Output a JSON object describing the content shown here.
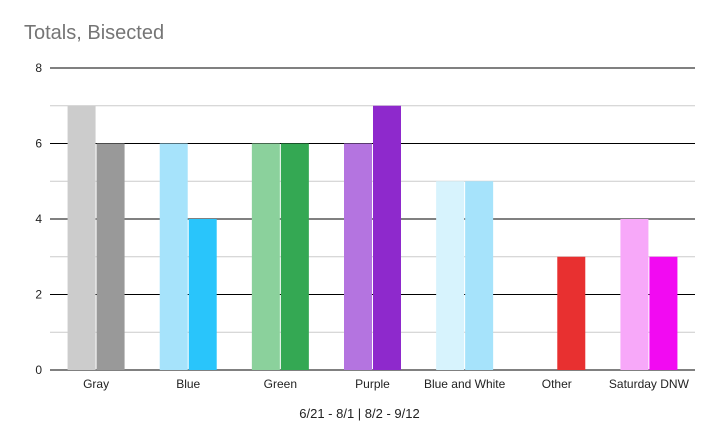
{
  "chart_data": {
    "type": "bar",
    "title": "Totals, Bisected",
    "xlabel": "6/21 - 8/1 | 8/2 - 9/12",
    "ylabel": "",
    "ylim": [
      0,
      8
    ],
    "yticks": [
      0,
      2,
      4,
      6,
      8
    ],
    "grid": true,
    "categories": [
      "Gray",
      "Blue",
      "Green",
      "Purple",
      "Blue and White",
      "Other",
      "Saturday DNW"
    ],
    "series": [
      {
        "values": [
          7,
          6,
          6,
          6,
          5,
          0,
          4
        ]
      },
      {
        "values": [
          6,
          4,
          6,
          7,
          5,
          3,
          3
        ]
      }
    ],
    "bar_colors": [
      [
        "#cccccc",
        "#999999"
      ],
      [
        "#a6e3fb",
        "#29c5fb"
      ],
      [
        "#8bd19c",
        "#34a853"
      ],
      [
        "#b474e0",
        "#8e29cc"
      ],
      [
        "#d7f3fd",
        "#a6e3fb"
      ],
      [
        "#ffffff",
        "#e83030"
      ],
      [
        "#f7a8f9",
        "#f20af2"
      ]
    ]
  }
}
